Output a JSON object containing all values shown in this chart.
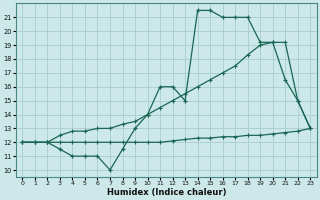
{
  "x": [
    0,
    1,
    2,
    3,
    4,
    5,
    6,
    7,
    8,
    9,
    10,
    11,
    12,
    13,
    14,
    15,
    16,
    17,
    18,
    19,
    20,
    21,
    22,
    23
  ],
  "humidex": [
    12,
    12,
    12,
    11.5,
    11,
    11,
    11,
    10,
    11.5,
    13,
    14,
    16,
    16,
    15,
    21.5,
    21.5,
    21,
    21,
    21,
    19.2,
    19.2,
    16.5,
    15,
    13
  ],
  "trend_line": [
    12,
    12,
    12,
    12.5,
    12.8,
    12.8,
    13,
    13,
    13.3,
    13.5,
    14,
    14.5,
    15,
    15.5,
    16,
    16.5,
    17,
    17.5,
    18.3,
    19,
    19.2,
    19.2,
    15,
    13
  ],
  "flat_line": [
    12,
    12,
    12,
    12,
    12,
    12,
    12,
    12,
    12,
    12,
    12,
    12,
    12.1,
    12.2,
    12.3,
    12.3,
    12.4,
    12.4,
    12.5,
    12.5,
    12.6,
    12.7,
    12.8,
    13
  ],
  "bg_color": "#cce8e8",
  "line_color": "#1a6655",
  "grid_color": "#aacccc",
  "xlabel": "Humidex (Indice chaleur)",
  "ylim": [
    9.5,
    22
  ],
  "xlim": [
    -0.5,
    23.5
  ],
  "yticks": [
    10,
    11,
    12,
    13,
    14,
    15,
    16,
    17,
    18,
    19,
    20,
    21
  ],
  "xticks": [
    0,
    1,
    2,
    3,
    4,
    5,
    6,
    7,
    8,
    9,
    10,
    11,
    12,
    13,
    14,
    15,
    16,
    17,
    18,
    19,
    20,
    21,
    22,
    23
  ]
}
